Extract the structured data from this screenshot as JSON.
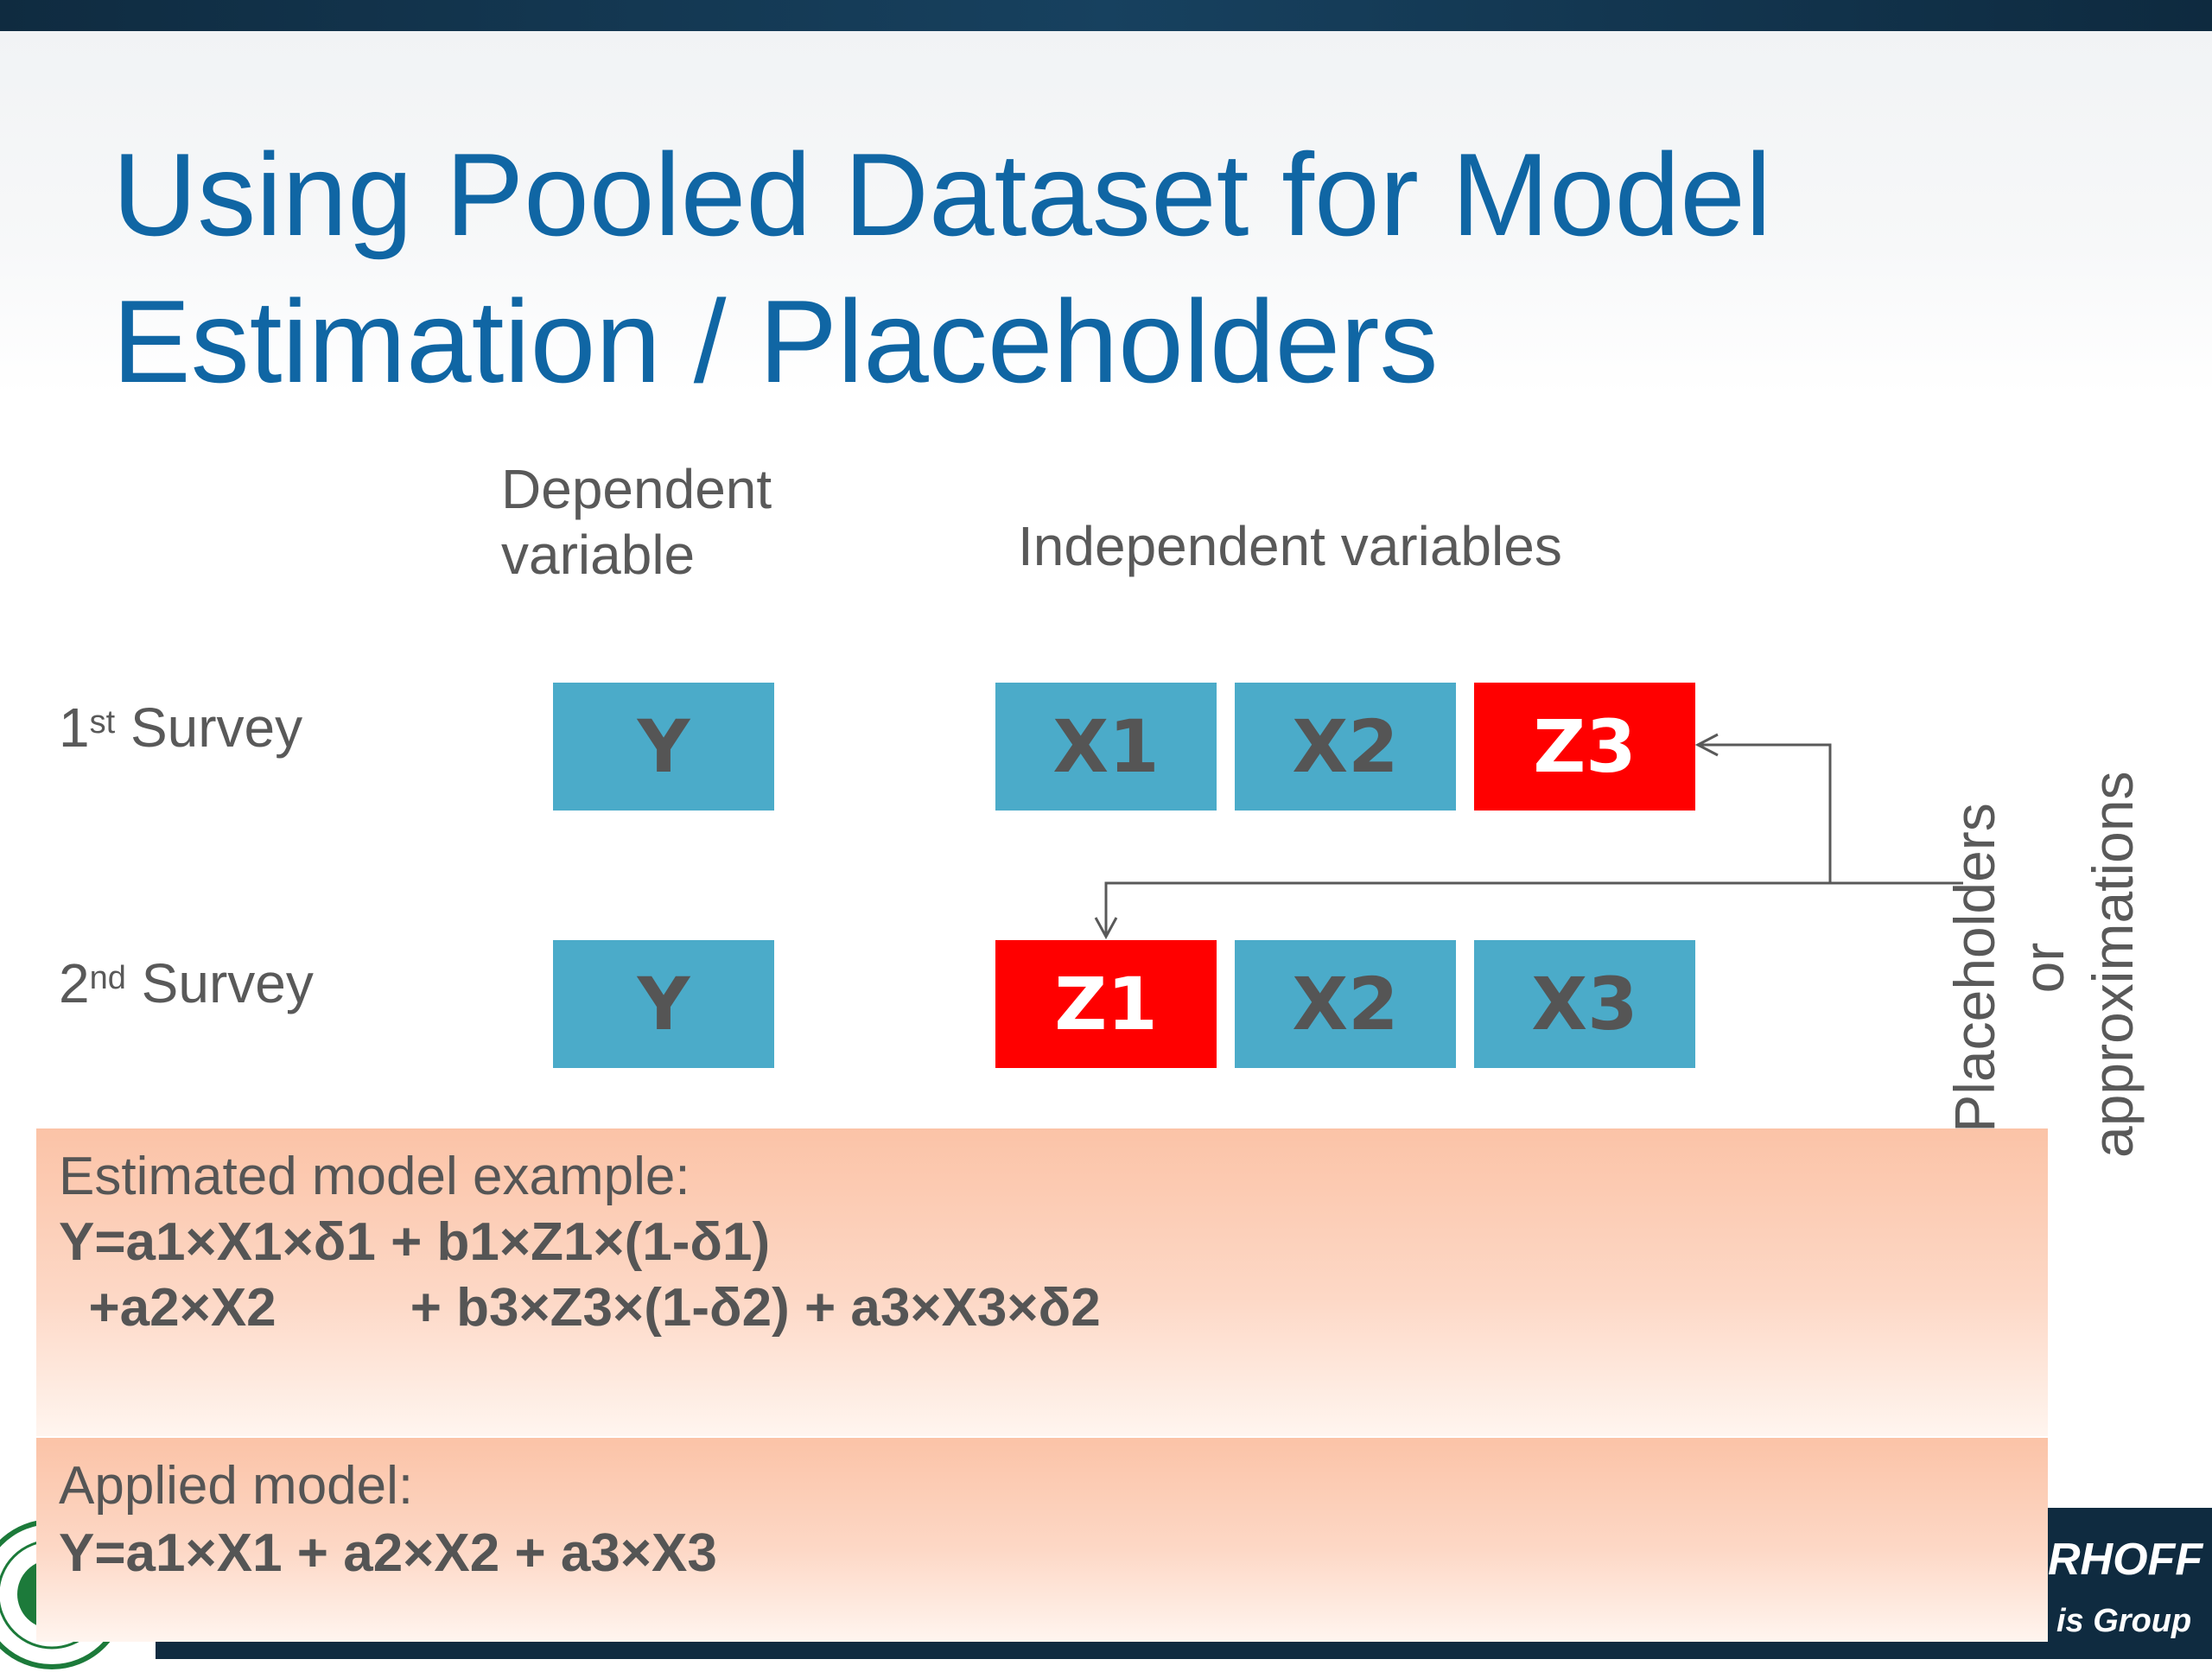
{
  "title": {
    "line1": "Using Pooled Dataset for Model",
    "line2": "Estimation / Placeholders"
  },
  "column_headers": {
    "dependent_line1": "Dependent",
    "dependent_line2": "variable",
    "independent": "Independent variables"
  },
  "rows": [
    {
      "ordinal": "1",
      "suffix": "st",
      "label": " Survey",
      "dependent": "Y",
      "vars": [
        {
          "text": "X1",
          "type": "observed"
        },
        {
          "text": "X2",
          "type": "observed"
        },
        {
          "text": "Z3",
          "type": "placeholder"
        }
      ]
    },
    {
      "ordinal": "2",
      "suffix": "nd",
      "label": " Survey",
      "dependent": "Y",
      "vars": [
        {
          "text": "Z1",
          "type": "placeholder"
        },
        {
          "text": "X2",
          "type": "observed"
        },
        {
          "text": "X3",
          "type": "observed"
        }
      ]
    }
  ],
  "side_note": {
    "line1": "Placeholders or",
    "line2": "approximations"
  },
  "estimated_model": {
    "title": "Estimated model example:",
    "line1": "Y=a1×X1×δ1 + b1×Z1×(1-δ1)",
    "line2": "  +a2×X2         + b3×Z3×(1-δ2) + a3×X3×δ2"
  },
  "applied_model": {
    "title": "Applied model:",
    "line1": "Y=a1×X1 + a2×X2 + a3×X3"
  },
  "footer": {
    "logo_line1": "RHOFF",
    "logo_line2": "is Group"
  },
  "colors": {
    "title": "#1066a4",
    "observed_box": "#4babc9",
    "placeholder_box": "#ff0000",
    "panel": "#fbc3a7"
  }
}
